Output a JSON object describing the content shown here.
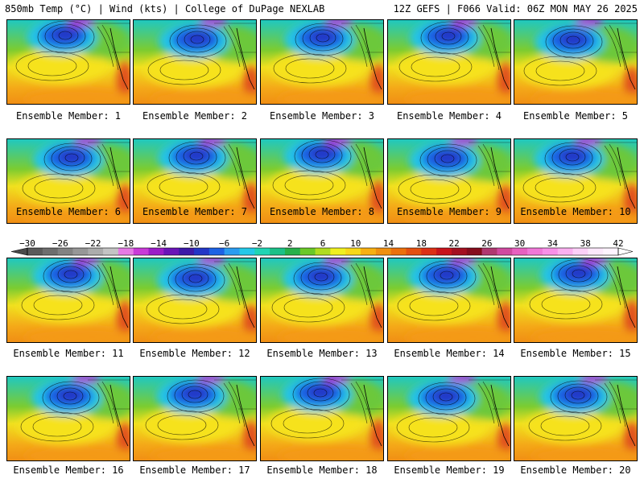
{
  "header": {
    "left_title": "850mb Temp (°C) | Wind (kts) | College of DuPage NEXLAB",
    "right_title": "12Z GEFS | F066 Valid: 06Z MON MAY 26 2025"
  },
  "members": [
    "Ensemble Member: 1",
    "Ensemble Member: 2",
    "Ensemble Member: 3",
    "Ensemble Member: 4",
    "Ensemble Member: 5",
    "Ensemble Member: 6",
    "Ensemble Member: 7",
    "Ensemble Member: 8",
    "Ensemble Member: 9",
    "Ensemble Member: 10",
    "Ensemble Member: 11",
    "Ensemble Member: 12",
    "Ensemble Member: 13",
    "Ensemble Member: 14",
    "Ensemble Member: 15",
    "Ensemble Member: 16",
    "Ensemble Member: 17",
    "Ensemble Member: 18",
    "Ensemble Member: 19",
    "Ensemble Member: 20"
  ],
  "colorbar": {
    "tick_labels": [
      "−30",
      "−26",
      "−22",
      "−18",
      "−14",
      "−10",
      "−6",
      "−2",
      "2",
      "6",
      "10",
      "14",
      "18",
      "22",
      "26",
      "30",
      "34",
      "38",
      "42"
    ],
    "colors": [
      "#5a5a5a",
      "#6e6e6e",
      "#828282",
      "#979797",
      "#acacac",
      "#c4c4c4",
      "#e57ae5",
      "#c93ad8",
      "#9b1cc8",
      "#6a14b8",
      "#3d1aa8",
      "#2336c6",
      "#1d62e4",
      "#2a9cf0",
      "#24c8e8",
      "#20d4b4",
      "#1cc088",
      "#26b04a",
      "#6ac828",
      "#b0dc20",
      "#f0f020",
      "#f8d818",
      "#f8b012",
      "#f09010",
      "#ec700c",
      "#e45010",
      "#dc3016",
      "#c8141c",
      "#a41020",
      "#860c1c",
      "#b03870",
      "#d04aa0",
      "#e860c0",
      "#f078d8",
      "#f890e8",
      "#fbb0f0",
      "#fdd0f8",
      "#fde8fc",
      "#fff4ff"
    ]
  }
}
